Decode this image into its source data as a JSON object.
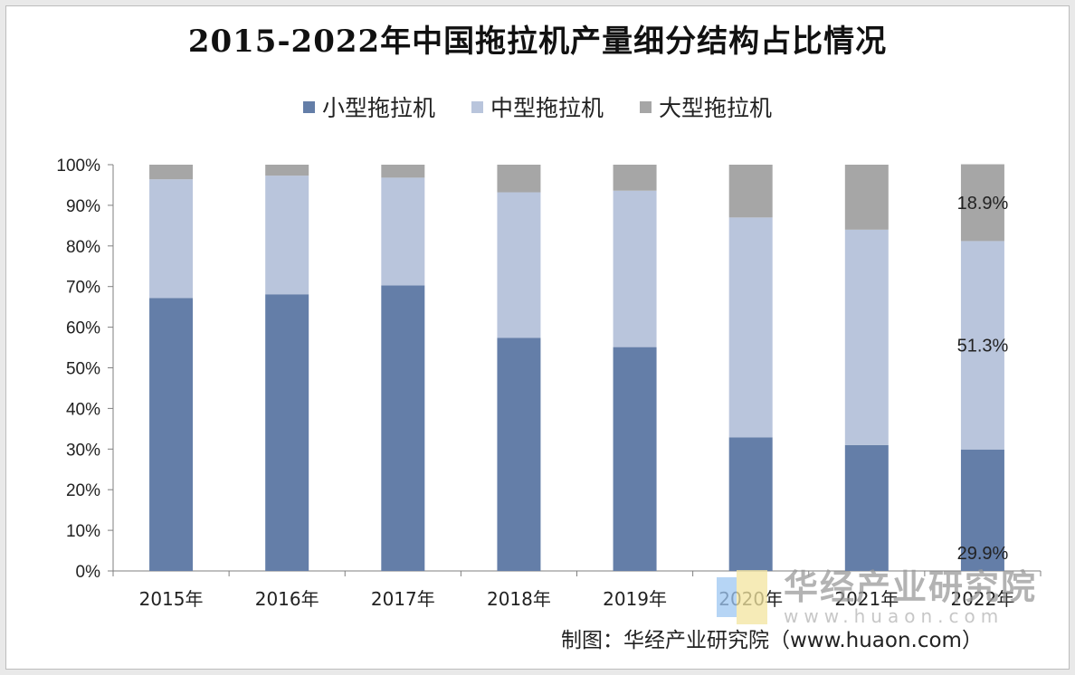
{
  "chart_data": {
    "type": "bar",
    "stacked": true,
    "title": "2015-2022年中国拖拉机产量细分结构占比情况",
    "categories": [
      "2015年",
      "2016年",
      "2017年",
      "2018年",
      "2019年",
      "2020年",
      "2021年",
      "2022年"
    ],
    "series": [
      {
        "name": "小型拖拉机",
        "color": "#647ea8",
        "values": [
          67.2,
          68.1,
          70.3,
          57.4,
          55.1,
          32.9,
          31.0,
          29.9
        ]
      },
      {
        "name": "中型拖拉机",
        "color": "#b9c5dc",
        "values": [
          29.2,
          29.2,
          26.5,
          35.8,
          38.5,
          54.1,
          53.0,
          51.3
        ]
      },
      {
        "name": "大型拖拉机",
        "color": "#a6a6a6",
        "values": [
          3.6,
          2.7,
          3.2,
          6.8,
          6.4,
          13.0,
          16.0,
          18.9
        ]
      }
    ],
    "data_labels": [
      {
        "category": "2022年",
        "series": "大型拖拉机",
        "text": "18.9%"
      },
      {
        "category": "2022年",
        "series": "中型拖拉机",
        "text": "51.3%"
      },
      {
        "category": "2022年",
        "series": "小型拖拉机",
        "text": "29.9%"
      }
    ],
    "yticks": [
      "0%",
      "10%",
      "20%",
      "30%",
      "40%",
      "50%",
      "60%",
      "70%",
      "80%",
      "90%",
      "100%"
    ],
    "ylim": [
      0,
      100
    ],
    "legend_position": "top",
    "grid": false
  },
  "source_text": "制图：华经产业研究院（www.huaon.com）",
  "watermark": {
    "name": "华经产业研究院",
    "url": "www.huaon.com"
  }
}
